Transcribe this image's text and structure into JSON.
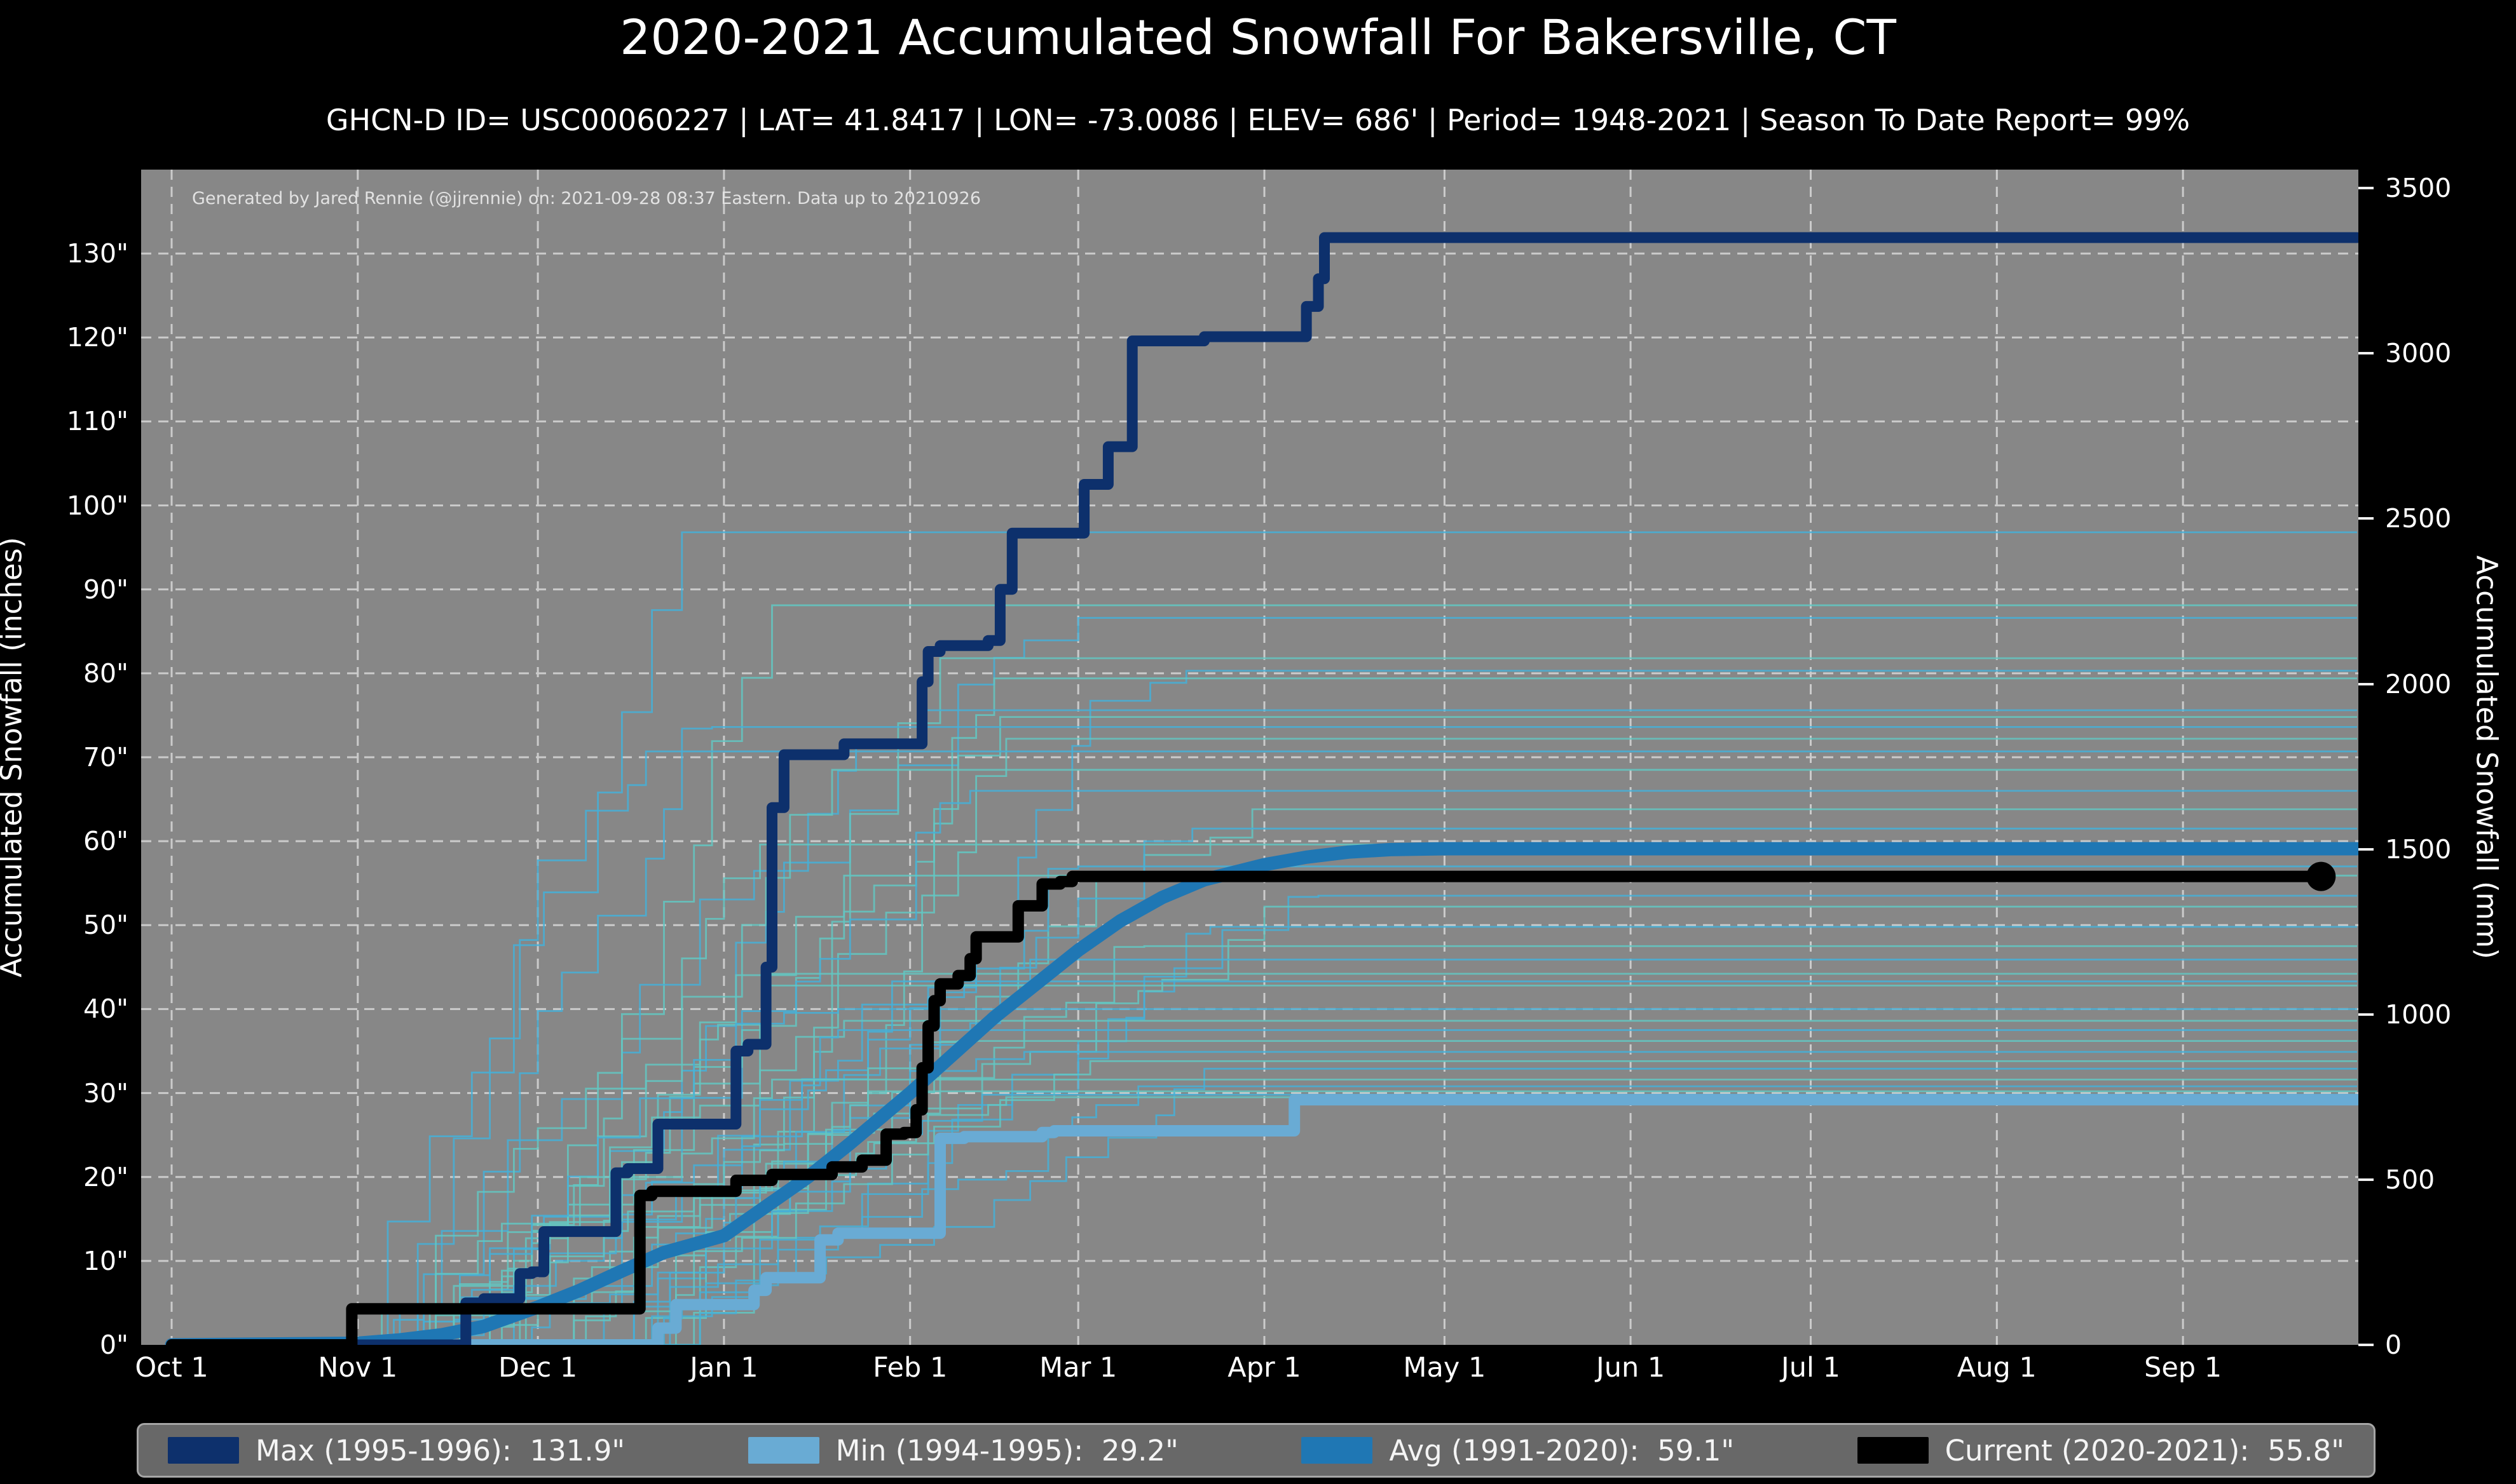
{
  "title": "2020-2021 Accumulated Snowfall For Bakersville, CT",
  "subtitle": "GHCN-D ID= USC00060227 | LAT= 41.8417 | LON= -73.0086 | ELEV= 686' | Period= 1948-2021 | Season To Date Report= 99%",
  "watermark": "Generated by Jared Rennie (@jjrennie) on: 2021-09-28 08:37 Eastern. Data up to 20210926",
  "legend": {
    "items": [
      {
        "label": "Max (1995-1996):  131.9\"",
        "color": "#0d306c"
      },
      {
        "label": "Min (1994-1995):  29.2\"",
        "color": "#69abd4"
      },
      {
        "label": "Avg (1991-2020):  59.1\"",
        "color": "#1f77b4"
      },
      {
        "label": "Current (2020-2021):  55.8\"",
        "color": "#000000"
      }
    ]
  },
  "chart_data": {
    "type": "line",
    "title": "2020-2021 Accumulated Snowfall For Bakersville, CT",
    "xlabel": "",
    "ylabel_left": "Accumulated Snowfall (inches)",
    "ylabel_right": "Accumulated Snowfall (mm)",
    "plot_bg": "#878787",
    "grid": {
      "on": true,
      "color": "#cfcfcf",
      "width": 3,
      "dash": [
        16,
        11
      ]
    },
    "x_axis": {
      "unit": "day_of_season",
      "min_day": 0,
      "max_day": 364,
      "ticks": [
        {
          "label": "Oct 1",
          "day": 0
        },
        {
          "label": "Nov 1",
          "day": 31
        },
        {
          "label": "Dec 1",
          "day": 61
        },
        {
          "label": "Jan 1",
          "day": 92
        },
        {
          "label": "Feb 1",
          "day": 123
        },
        {
          "label": "Mar 1",
          "day": 151
        },
        {
          "label": "Apr 1",
          "day": 182
        },
        {
          "label": "May 1",
          "day": 212
        },
        {
          "label": "Jun 1",
          "day": 243
        },
        {
          "label": "Jul 1",
          "day": 273
        },
        {
          "label": "Aug 1",
          "day": 304
        },
        {
          "label": "Sep 1",
          "day": 335
        }
      ]
    },
    "y_axis_left": {
      "min": 0,
      "max": 140,
      "tick_values": [
        0,
        10,
        20,
        30,
        40,
        50,
        60,
        70,
        80,
        90,
        100,
        110,
        120,
        130
      ],
      "tick_suffix": "\"",
      "gridline_values": [
        10,
        20,
        30,
        40,
        50,
        60,
        70,
        80,
        90,
        100,
        110,
        120,
        130
      ]
    },
    "y_axis_right": {
      "tick_values_mm": [
        0,
        500,
        1000,
        1500,
        2000,
        2500,
        3000,
        3500
      ],
      "mm_per_inch": 25.4
    },
    "series": [
      {
        "name": "max",
        "season": "1995-1996",
        "total_inches": 131.9,
        "color": "#0d306c",
        "width": 17,
        "interp": "step",
        "points": [
          [
            0,
            0
          ],
          [
            47,
            0
          ],
          [
            49,
            5.0
          ],
          [
            52,
            5.5
          ],
          [
            57,
            5.5
          ],
          [
            58,
            8.5
          ],
          [
            60,
            8.7
          ],
          [
            62,
            13.5
          ],
          [
            72,
            13.5
          ],
          [
            74,
            20.5
          ],
          [
            76,
            21.0
          ],
          [
            79,
            21.0
          ],
          [
            81,
            26.3
          ],
          [
            93,
            26.3
          ],
          [
            94,
            35.0
          ],
          [
            96,
            35.8
          ],
          [
            98,
            35.8
          ],
          [
            99,
            45.0
          ],
          [
            100,
            64.0
          ],
          [
            102,
            70.3
          ],
          [
            111,
            70.3
          ],
          [
            112,
            71.6
          ],
          [
            124,
            71.6
          ],
          [
            125,
            79.0
          ],
          [
            126,
            82.6
          ],
          [
            128,
            83.3
          ],
          [
            136,
            83.9
          ],
          [
            138,
            90.0
          ],
          [
            140,
            96.7
          ],
          [
            151,
            96.7
          ],
          [
            152,
            102.5
          ],
          [
            155,
            102.5
          ],
          [
            156,
            107.0
          ],
          [
            158,
            107.0
          ],
          [
            160,
            119.6
          ],
          [
            171,
            119.6
          ],
          [
            172,
            120.1
          ],
          [
            187,
            120.1
          ],
          [
            189,
            123.7
          ],
          [
            190,
            123.7
          ],
          [
            191,
            127.0
          ],
          [
            192,
            131.9
          ],
          [
            364,
            131.9
          ]
        ]
      },
      {
        "name": "min",
        "season": "1994-1995",
        "total_inches": 29.2,
        "color": "#69abd4",
        "width": 18,
        "interp": "step",
        "points": [
          [
            0,
            0
          ],
          [
            79,
            0
          ],
          [
            81,
            2.0
          ],
          [
            84,
            4.8
          ],
          [
            92,
            4.8
          ],
          [
            97,
            6.5
          ],
          [
            99,
            8.0
          ],
          [
            107,
            8.0
          ],
          [
            108,
            12.5
          ],
          [
            111,
            13.3
          ],
          [
            126,
            13.3
          ],
          [
            128,
            24.6
          ],
          [
            132,
            24.8
          ],
          [
            145,
            25.3
          ],
          [
            147,
            25.5
          ],
          [
            185,
            25.5
          ],
          [
            187,
            29.2
          ],
          [
            364,
            29.2
          ]
        ]
      },
      {
        "name": "avg",
        "period": "1991-2020",
        "total_inches": 59.1,
        "color": "#1f77b4",
        "width": 21,
        "interp": "linear",
        "points": [
          [
            0,
            0
          ],
          [
            31,
            0.2
          ],
          [
            38,
            0.6
          ],
          [
            45,
            1.2
          ],
          [
            52,
            2.2
          ],
          [
            61,
            4.5
          ],
          [
            68,
            6.5
          ],
          [
            75,
            8.8
          ],
          [
            82,
            11.0
          ],
          [
            92,
            13.0
          ],
          [
            99,
            16.5
          ],
          [
            106,
            20.0
          ],
          [
            113,
            24.0
          ],
          [
            118,
            27.0
          ],
          [
            123,
            30.0
          ],
          [
            130,
            34.5
          ],
          [
            137,
            39.0
          ],
          [
            144,
            43.0
          ],
          [
            151,
            47.0
          ],
          [
            158,
            50.5
          ],
          [
            165,
            53.3
          ],
          [
            172,
            55.4
          ],
          [
            182,
            57.2
          ],
          [
            189,
            58.1
          ],
          [
            196,
            58.7
          ],
          [
            203,
            59.0
          ],
          [
            212,
            59.1
          ],
          [
            364,
            59.1
          ]
        ]
      },
      {
        "name": "current",
        "season": "2020-2021",
        "total_inches": 55.8,
        "color": "#000000",
        "width": 18,
        "interp": "step",
        "points": [
          [
            0,
            0
          ],
          [
            29,
            0
          ],
          [
            30,
            4.3
          ],
          [
            77,
            4.3
          ],
          [
            78,
            17.8
          ],
          [
            80,
            18.3
          ],
          [
            93,
            18.3
          ],
          [
            94,
            19.6
          ],
          [
            98,
            19.6
          ],
          [
            100,
            20.3
          ],
          [
            108,
            20.3
          ],
          [
            110,
            21.2
          ],
          [
            115,
            22.0
          ],
          [
            118,
            22.0
          ],
          [
            119,
            25.1
          ],
          [
            122,
            25.3
          ],
          [
            124,
            28.0
          ],
          [
            125,
            33.0
          ],
          [
            126,
            38.0
          ],
          [
            127,
            41.0
          ],
          [
            128,
            43.0
          ],
          [
            131,
            44.0
          ],
          [
            133,
            46.0
          ],
          [
            134,
            48.6
          ],
          [
            140,
            48.6
          ],
          [
            141,
            52.3
          ],
          [
            144,
            52.3
          ],
          [
            145,
            54.9
          ],
          [
            148,
            55.2
          ],
          [
            150,
            55.8
          ],
          [
            358,
            55.8
          ]
        ]
      }
    ],
    "current_dot": {
      "day": 358,
      "value": 55.8,
      "radius": 23,
      "color": "#000000"
    },
    "ensemble": {
      "description": "thin individual-season traces 1948-2021",
      "colors": [
        "#45b0d8",
        "#63c7c2"
      ],
      "opacity": 0.85,
      "width": 2.8,
      "seed": 7,
      "endpoints_inches": [
        96.8,
        88.1,
        86.6,
        81.8,
        80.3,
        79.4,
        75.6,
        74.8,
        73.6,
        72.2,
        70.7,
        68.5,
        66.0,
        63.8,
        61.5,
        59.6,
        57.0,
        55.9,
        53.5,
        52.2,
        49.8,
        47.5,
        45.9,
        44.2,
        43.3,
        42.8,
        40.0,
        38.6,
        37.5,
        36.2,
        34.9,
        33.8,
        32.9,
        31.6,
        30.8,
        30.2,
        29.8,
        29.5
      ]
    },
    "legend_position": "bottom"
  }
}
